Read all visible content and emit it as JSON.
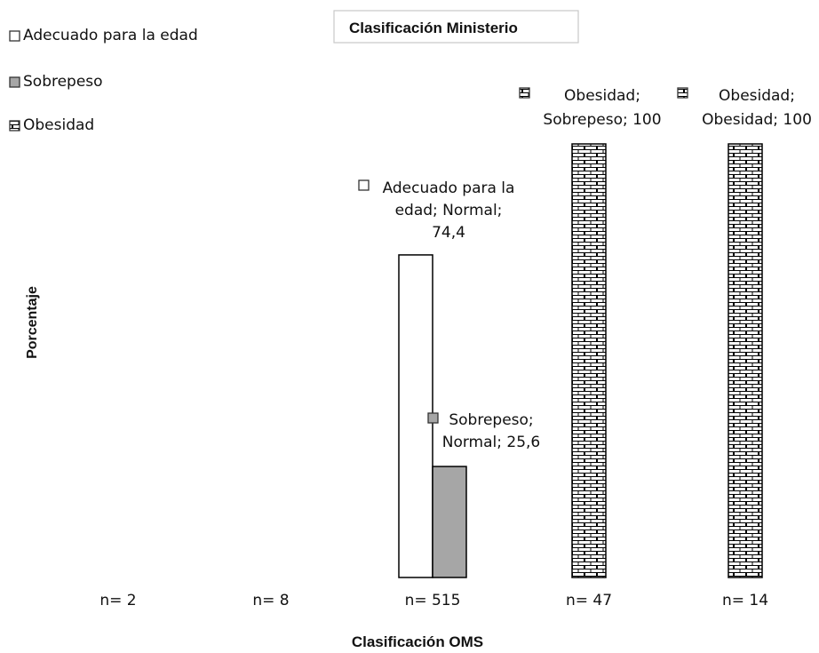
{
  "chart_data": {
    "type": "bar",
    "title": "Clasificación Ministerio",
    "xlabel": "Clasificación OMS",
    "ylabel": "Porcentaje",
    "ylim": [
      0,
      100
    ],
    "grid": false,
    "legend_position": "top-left",
    "categories": [
      "n= 2",
      "n= 8",
      "n= 515",
      "n= 47",
      "n= 14"
    ],
    "series": [
      {
        "name": "Adecuado para la edad",
        "pattern": "empty",
        "color": "#ffffff",
        "values": [
          null,
          null,
          74.4,
          null,
          null
        ]
      },
      {
        "name": "Sobrepeso",
        "pattern": "solid",
        "color": "#a6a6a6",
        "values": [
          null,
          null,
          25.6,
          null,
          null
        ]
      },
      {
        "name": "Obesidad",
        "pattern": "brick",
        "color": "#ffffff",
        "values": [
          null,
          null,
          null,
          100,
          100
        ]
      }
    ],
    "data_labels": [
      {
        "series": 0,
        "category": 2,
        "lines": [
          "Adecuado para la",
          "edad; Normal;",
          "74,4"
        ]
      },
      {
        "series": 1,
        "category": 2,
        "lines": [
          "Sobrepeso;",
          "Normal; 25,6"
        ]
      },
      {
        "series": 2,
        "category": 3,
        "lines": [
          "Obesidad;",
          "Sobrepeso; 100"
        ]
      },
      {
        "series": 2,
        "category": 4,
        "lines": [
          "Obesidad;",
          "Obesidad; 100"
        ]
      }
    ]
  }
}
